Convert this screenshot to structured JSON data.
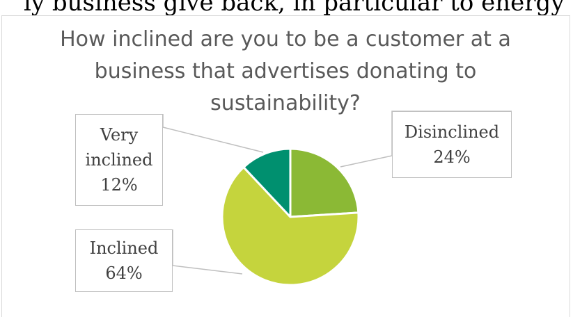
{
  "page": {
    "cut_off_text": "ly business give back, in particular to energy"
  },
  "chart_data": {
    "type": "pie",
    "title": "How inclined are you to be a customer at a business that advertises donating to sustainability?",
    "categories": [
      "Disinclined",
      "Inclined",
      "Very inclined"
    ],
    "values": [
      24,
      64,
      12
    ],
    "unit": "%",
    "labels": [
      {
        "name": "Disinclined",
        "percent": "24%"
      },
      {
        "name": "Inclined",
        "percent": "64%"
      },
      {
        "name": "Very inclined",
        "name_line1": "Very",
        "name_line2": "inclined",
        "percent": "12%"
      }
    ],
    "colors": [
      "#8bb935",
      "#c5d43d",
      "#00906f"
    ],
    "slice_border_color": "#ffffff",
    "legend": "none",
    "data_labels": "callout"
  }
}
